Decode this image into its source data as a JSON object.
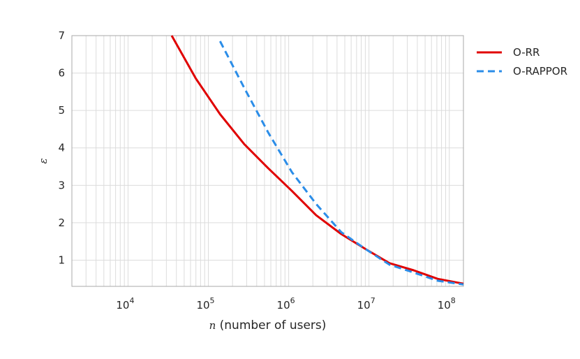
{
  "chart_data": {
    "type": "line",
    "xlabel_var": "n",
    "xlabel_rest": " (number of users)",
    "ylabel": "ε",
    "x_scale": "log",
    "xlim": [
      2000,
      150000000
    ],
    "ylim": [
      0.3,
      7
    ],
    "grid": true,
    "legend_position": "outside-right",
    "yticks": [
      1,
      2,
      3,
      4,
      5,
      6,
      7
    ],
    "xticks": [
      {
        "value": 10000,
        "base": "10",
        "exp": "4"
      },
      {
        "value": 100000,
        "base": "10",
        "exp": "5"
      },
      {
        "value": 1000000,
        "base": "10",
        "exp": "6"
      },
      {
        "value": 10000000,
        "base": "10",
        "exp": "7"
      },
      {
        "value": 100000000,
        "base": "10",
        "exp": "8"
      }
    ],
    "series": [
      {
        "name": "O-RR",
        "color": "#e00000",
        "dash": "solid",
        "points": [
          [
            35000,
            7.0
          ],
          [
            70000,
            5.85
          ],
          [
            140000,
            4.9
          ],
          [
            280000,
            4.1
          ],
          [
            560000,
            3.45
          ],
          [
            1100000,
            2.85
          ],
          [
            2200000,
            2.2
          ],
          [
            4500000,
            1.7
          ],
          [
            9000000,
            1.3
          ],
          [
            18000000,
            0.92
          ],
          [
            36000000,
            0.73
          ],
          [
            72000000,
            0.5
          ],
          [
            150000000,
            0.37
          ]
        ]
      },
      {
        "name": "O-RAPPOR",
        "color": "#2b8de8",
        "dash": "dashed",
        "points": [
          [
            140000,
            6.85
          ],
          [
            280000,
            5.6
          ],
          [
            560000,
            4.4
          ],
          [
            1100000,
            3.35
          ],
          [
            2200000,
            2.5
          ],
          [
            4500000,
            1.75
          ],
          [
            9000000,
            1.3
          ],
          [
            18000000,
            0.88
          ],
          [
            36000000,
            0.67
          ],
          [
            72000000,
            0.45
          ],
          [
            150000000,
            0.35
          ]
        ]
      }
    ]
  }
}
